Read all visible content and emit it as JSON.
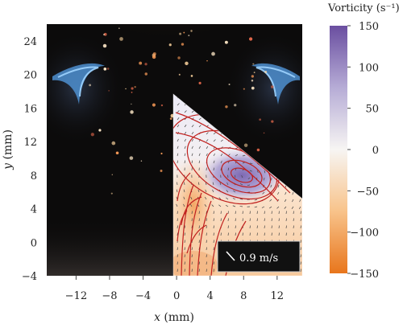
{
  "chart_data": {
    "type": "heatmap",
    "xlabel": "x (mm)",
    "ylabel": "y (mm)",
    "xlim": [
      -15.5,
      15
    ],
    "ylim": [
      -4,
      26
    ],
    "x_ticks": [
      -12,
      -8,
      -4,
      0,
      4,
      8,
      12
    ],
    "y_ticks": [
      -4,
      0,
      4,
      8,
      12,
      16,
      20,
      24
    ],
    "colorbar": {
      "title": "Vorticity (s⁻¹)",
      "min": -150,
      "max": 150,
      "ticks": [
        150,
        100,
        50,
        0,
        -50,
        -100,
        -150
      ],
      "colors": {
        "high": "#6a4ea0",
        "mid": "#f7f5f3",
        "low": "#e8761c"
      }
    },
    "vector_scale_label": "0.9 m/s",
    "overlay_region": {
      "x": [
        0,
        15
      ],
      "y": [
        -4,
        17.3
      ]
    },
    "vortex_center": {
      "x": 8.5,
      "y": 8.0
    }
  }
}
